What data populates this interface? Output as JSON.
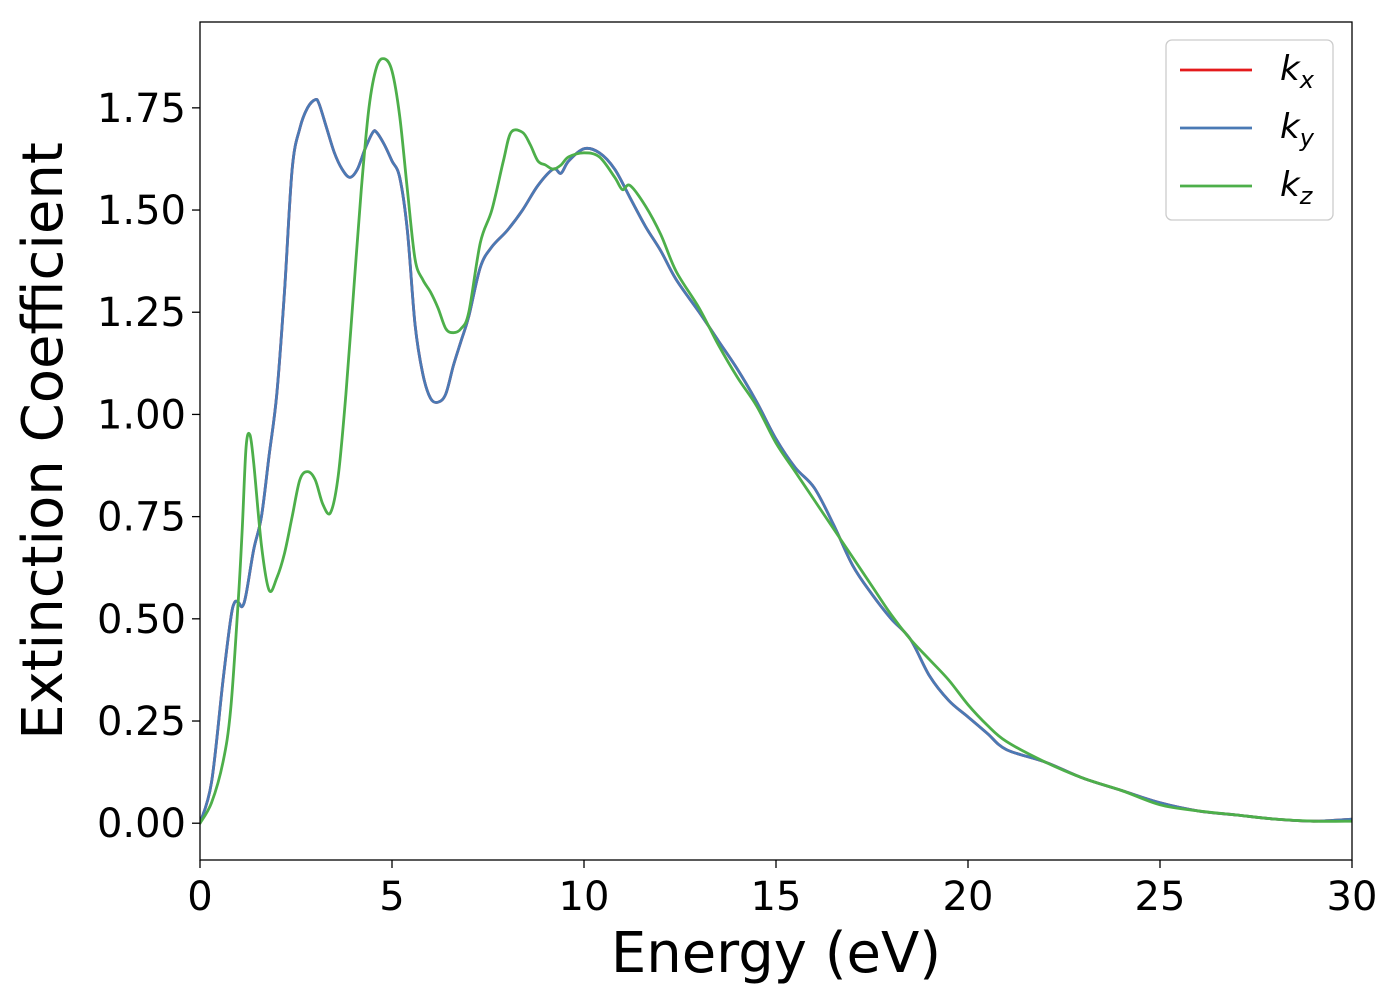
{
  "chart_data": {
    "type": "line",
    "title": "",
    "xlabel": "Energy (eV)",
    "ylabel": "Extinction Coefficient",
    "xlim": [
      0,
      30
    ],
    "ylim": [
      -0.09,
      1.96
    ],
    "xticks": [
      0,
      5,
      10,
      15,
      20,
      25,
      30
    ],
    "xtick_labels": [
      "0",
      "5",
      "10",
      "15",
      "20",
      "25",
      "30"
    ],
    "yticks": [
      0,
      0.25,
      0.5,
      0.75,
      1.0,
      1.25,
      1.5,
      1.75
    ],
    "ytick_labels": [
      "0.00",
      "0.25",
      "0.50",
      "0.75",
      "1.00",
      "1.25",
      "1.50",
      "1.75"
    ],
    "grid": false,
    "legend_position": "top-right",
    "series": [
      {
        "name": "k_x",
        "base": "k",
        "sub": "x",
        "color": "#e41a1c",
        "x": [
          0,
          0.3,
          0.6,
          0.8,
          0.9,
          1.0,
          1.1,
          1.2,
          1.4,
          1.6,
          1.8,
          2.0,
          2.2,
          2.4,
          2.6,
          2.8,
          3.0,
          3.1,
          3.3,
          3.5,
          3.7,
          3.9,
          4.1,
          4.3,
          4.5,
          4.6,
          4.8,
          5.0,
          5.2,
          5.4,
          5.6,
          5.8,
          6.0,
          6.2,
          6.4,
          6.6,
          6.8,
          7.0,
          7.3,
          7.6,
          8.0,
          8.4,
          8.8,
          9.2,
          9.4,
          9.6,
          10.0,
          10.4,
          10.8,
          11.2,
          11.6,
          12.0,
          12.4,
          13.0,
          13.5,
          14.0,
          14.5,
          15.0,
          15.5,
          16.0,
          16.5,
          17.0,
          17.5,
          18.0,
          18.5,
          19.0,
          19.5,
          20.0,
          20.5,
          21.0,
          22.0,
          23.0,
          24.0,
          25.0,
          26.0,
          27.0,
          28.0,
          29.0,
          30.0
        ],
        "y": [
          0.0,
          0.1,
          0.35,
          0.5,
          0.54,
          0.54,
          0.53,
          0.56,
          0.67,
          0.75,
          0.9,
          1.05,
          1.3,
          1.6,
          1.7,
          1.75,
          1.77,
          1.76,
          1.7,
          1.64,
          1.6,
          1.58,
          1.6,
          1.65,
          1.69,
          1.69,
          1.66,
          1.62,
          1.58,
          1.45,
          1.22,
          1.1,
          1.04,
          1.03,
          1.05,
          1.12,
          1.18,
          1.24,
          1.36,
          1.41,
          1.45,
          1.5,
          1.56,
          1.6,
          1.59,
          1.62,
          1.65,
          1.64,
          1.6,
          1.53,
          1.46,
          1.4,
          1.33,
          1.25,
          1.18,
          1.11,
          1.03,
          0.94,
          0.87,
          0.82,
          0.73,
          0.63,
          0.56,
          0.5,
          0.45,
          0.36,
          0.3,
          0.26,
          0.22,
          0.18,
          0.15,
          0.11,
          0.08,
          0.05,
          0.03,
          0.02,
          0.01,
          0.005,
          0.01
        ]
      },
      {
        "name": "k_y",
        "base": "k",
        "sub": "y",
        "color": "#4a7ab5",
        "x": [
          0,
          0.3,
          0.6,
          0.8,
          0.9,
          1.0,
          1.1,
          1.2,
          1.4,
          1.6,
          1.8,
          2.0,
          2.2,
          2.4,
          2.6,
          2.8,
          3.0,
          3.1,
          3.3,
          3.5,
          3.7,
          3.9,
          4.1,
          4.3,
          4.5,
          4.6,
          4.8,
          5.0,
          5.2,
          5.4,
          5.6,
          5.8,
          6.0,
          6.2,
          6.4,
          6.6,
          6.8,
          7.0,
          7.3,
          7.6,
          8.0,
          8.4,
          8.8,
          9.2,
          9.4,
          9.6,
          10.0,
          10.4,
          10.8,
          11.2,
          11.6,
          12.0,
          12.4,
          13.0,
          13.5,
          14.0,
          14.5,
          15.0,
          15.5,
          16.0,
          16.5,
          17.0,
          17.5,
          18.0,
          18.5,
          19.0,
          19.5,
          20.0,
          20.5,
          21.0,
          22.0,
          23.0,
          24.0,
          25.0,
          26.0,
          27.0,
          28.0,
          29.0,
          30.0
        ],
        "y": [
          0.0,
          0.1,
          0.35,
          0.5,
          0.54,
          0.54,
          0.53,
          0.56,
          0.67,
          0.75,
          0.9,
          1.05,
          1.3,
          1.6,
          1.7,
          1.75,
          1.77,
          1.76,
          1.7,
          1.64,
          1.6,
          1.58,
          1.6,
          1.65,
          1.69,
          1.69,
          1.66,
          1.62,
          1.58,
          1.45,
          1.22,
          1.1,
          1.04,
          1.03,
          1.05,
          1.12,
          1.18,
          1.24,
          1.36,
          1.41,
          1.45,
          1.5,
          1.56,
          1.6,
          1.59,
          1.62,
          1.65,
          1.64,
          1.6,
          1.53,
          1.46,
          1.4,
          1.33,
          1.25,
          1.18,
          1.11,
          1.03,
          0.94,
          0.87,
          0.82,
          0.73,
          0.63,
          0.56,
          0.5,
          0.45,
          0.36,
          0.3,
          0.26,
          0.22,
          0.18,
          0.15,
          0.11,
          0.08,
          0.05,
          0.03,
          0.02,
          0.01,
          0.005,
          0.01
        ]
      },
      {
        "name": "k_z",
        "base": "k",
        "sub": "z",
        "color": "#4daf4a",
        "x": [
          0,
          0.3,
          0.6,
          0.8,
          1.0,
          1.1,
          1.2,
          1.3,
          1.4,
          1.6,
          1.8,
          2.0,
          2.2,
          2.4,
          2.6,
          2.8,
          3.0,
          3.2,
          3.4,
          3.6,
          3.8,
          4.0,
          4.2,
          4.4,
          4.6,
          4.8,
          5.0,
          5.2,
          5.4,
          5.6,
          5.8,
          6.0,
          6.2,
          6.4,
          6.6,
          6.8,
          7.0,
          7.3,
          7.6,
          7.9,
          8.1,
          8.4,
          8.6,
          8.8,
          9.0,
          9.2,
          9.4,
          9.6,
          10.0,
          10.4,
          10.8,
          11.0,
          11.2,
          11.6,
          12.0,
          12.4,
          13.0,
          13.5,
          14.0,
          14.5,
          15.0,
          15.5,
          16.0,
          16.5,
          17.0,
          17.5,
          18.0,
          18.5,
          19.0,
          19.5,
          20.0,
          20.5,
          21.0,
          22.0,
          23.0,
          24.0,
          25.0,
          26.0,
          27.0,
          28.0,
          29.0,
          30.0
        ],
        "y": [
          0.0,
          0.05,
          0.15,
          0.28,
          0.55,
          0.72,
          0.92,
          0.95,
          0.88,
          0.68,
          0.57,
          0.6,
          0.66,
          0.75,
          0.84,
          0.86,
          0.84,
          0.78,
          0.76,
          0.85,
          1.05,
          1.3,
          1.55,
          1.75,
          1.85,
          1.87,
          1.84,
          1.73,
          1.55,
          1.38,
          1.33,
          1.3,
          1.26,
          1.21,
          1.2,
          1.21,
          1.25,
          1.42,
          1.5,
          1.62,
          1.69,
          1.69,
          1.66,
          1.62,
          1.61,
          1.6,
          1.61,
          1.63,
          1.64,
          1.63,
          1.58,
          1.55,
          1.56,
          1.51,
          1.44,
          1.35,
          1.26,
          1.17,
          1.09,
          1.02,
          0.93,
          0.86,
          0.79,
          0.72,
          0.65,
          0.58,
          0.51,
          0.45,
          0.4,
          0.35,
          0.29,
          0.24,
          0.2,
          0.15,
          0.11,
          0.08,
          0.045,
          0.03,
          0.02,
          0.01,
          0.005,
          0.005
        ]
      }
    ]
  }
}
